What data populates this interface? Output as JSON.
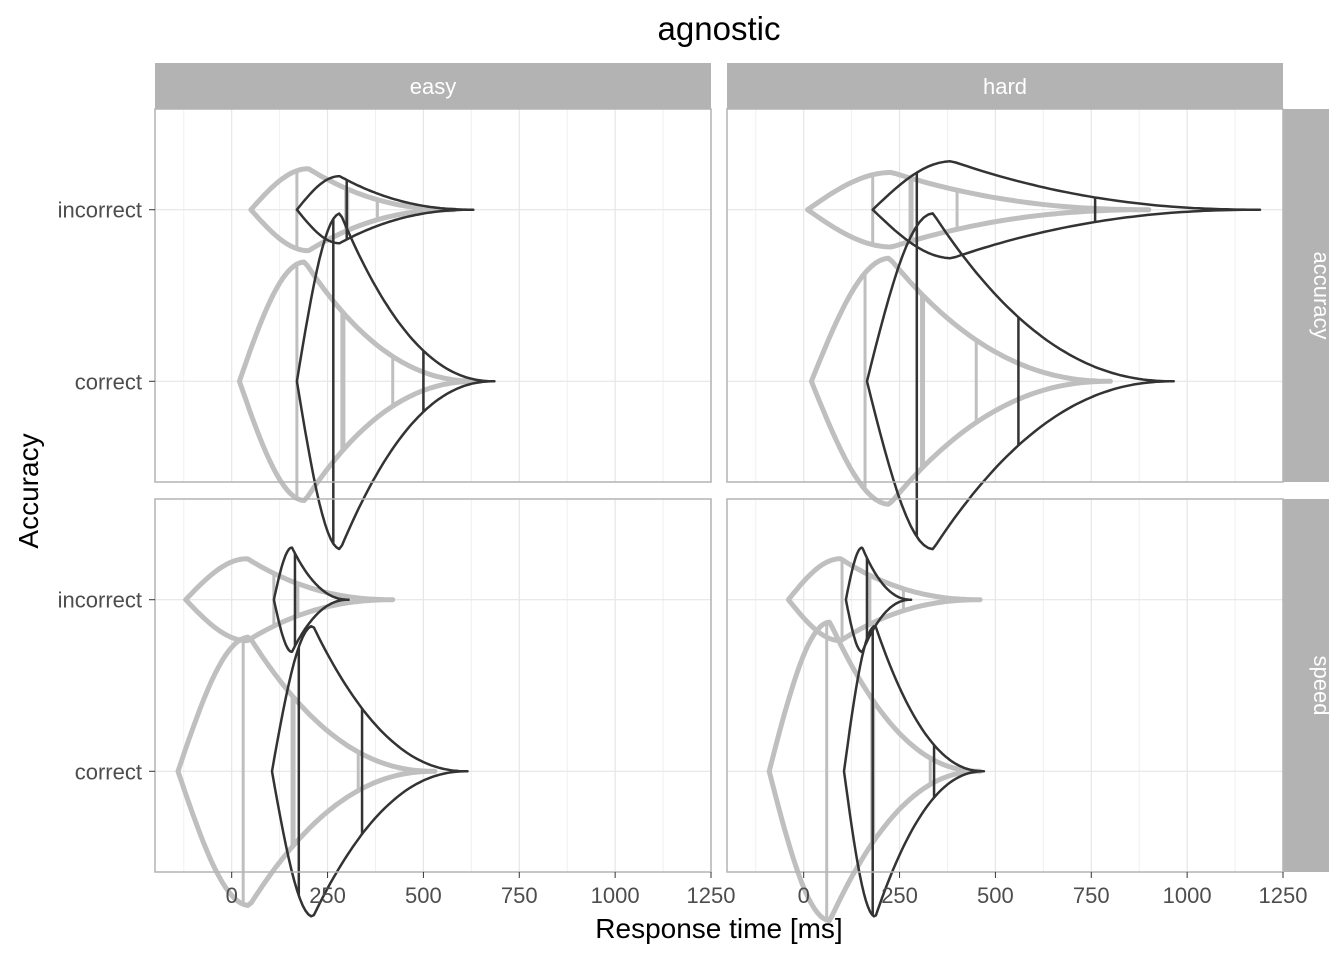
{
  "chart_data": {
    "type": "violin",
    "title": "agnostic",
    "xlabel": "Response time [ms]",
    "ylabel": "Accuracy",
    "xlim": [
      -200,
      1250
    ],
    "x_ticks": [
      0,
      250,
      500,
      750,
      1000,
      1250
    ],
    "x_tick_labels": [
      "0",
      "250",
      "500",
      "750",
      "1000",
      "1250"
    ],
    "categories": [
      "incorrect",
      "correct"
    ],
    "facet_cols": [
      "easy",
      "hard"
    ],
    "facet_rows": [
      "accuracy",
      "speed"
    ],
    "grid": true,
    "colors": {
      "observed": "#333333",
      "predicted": "#bfbfbf",
      "strip": "#b3b3b3",
      "strip_text": "#ffffff",
      "grid": "#e6e6e6",
      "panel_border": "#b3b3b3"
    },
    "panels": [
      {
        "row": "accuracy",
        "col": "easy",
        "violins": [
          {
            "category": "incorrect",
            "observed": {
              "min": 170,
              "max": 630,
              "median": 300,
              "q25": 170,
              "q75": 620,
              "width": 0.09
            },
            "predicted": {
              "min": 50,
              "max": 580,
              "median": 300,
              "q25": 170,
              "q75": 380,
              "width": 0.11
            }
          },
          {
            "category": "correct",
            "observed": {
              "min": 170,
              "max": 685,
              "median": 265,
              "q25": 170,
              "q75": 500,
              "width": 0.45
            },
            "predicted": {
              "min": 20,
              "max": 640,
              "median": 290,
              "q25": 170,
              "q75": 420,
              "width": 0.32
            }
          }
        ]
      },
      {
        "row": "accuracy",
        "col": "hard",
        "violins": [
          {
            "category": "incorrect",
            "observed": {
              "min": 180,
              "max": 1190,
              "median": 295,
              "q25": 180,
              "q75": 760,
              "width": 0.13
            },
            "predicted": {
              "min": 10,
              "max": 900,
              "median": 280,
              "q25": 180,
              "q75": 400,
              "width": 0.1
            }
          },
          {
            "category": "correct",
            "observed": {
              "min": 165,
              "max": 965,
              "median": 295,
              "q25": 165,
              "q75": 560,
              "width": 0.45
            },
            "predicted": {
              "min": 20,
              "max": 800,
              "median": 310,
              "q25": 160,
              "q75": 450,
              "width": 0.33
            }
          }
        ]
      },
      {
        "row": "speed",
        "col": "easy",
        "violins": [
          {
            "category": "incorrect",
            "observed": {
              "min": 110,
              "max": 305,
              "median": 165,
              "q25": 110,
              "q75": 300,
              "width": 0.14
            },
            "predicted": {
              "min": -120,
              "max": 420,
              "median": 170,
              "q25": 110,
              "q75": 280,
              "width": 0.11
            }
          },
          {
            "category": "correct",
            "observed": {
              "min": 105,
              "max": 615,
              "median": 175,
              "q25": 105,
              "q75": 340,
              "width": 0.39
            },
            "predicted": {
              "min": -140,
              "max": 530,
              "median": 160,
              "q25": 30,
              "q75": 330,
              "width": 0.36
            }
          }
        ]
      },
      {
        "row": "speed",
        "col": "hard",
        "violins": [
          {
            "category": "incorrect",
            "observed": {
              "min": 110,
              "max": 280,
              "median": 165,
              "q25": 110,
              "q75": 280,
              "width": 0.14
            },
            "predicted": {
              "min": -40,
              "max": 460,
              "median": 170,
              "q25": 100,
              "q75": 260,
              "width": 0.11
            }
          },
          {
            "category": "correct",
            "observed": {
              "min": 105,
              "max": 470,
              "median": 180,
              "q25": 105,
              "q75": 340,
              "width": 0.39
            },
            "predicted": {
              "min": -90,
              "max": 460,
              "median": 180,
              "q25": 60,
              "q75": 330,
              "width": 0.4
            }
          }
        ]
      }
    ]
  }
}
